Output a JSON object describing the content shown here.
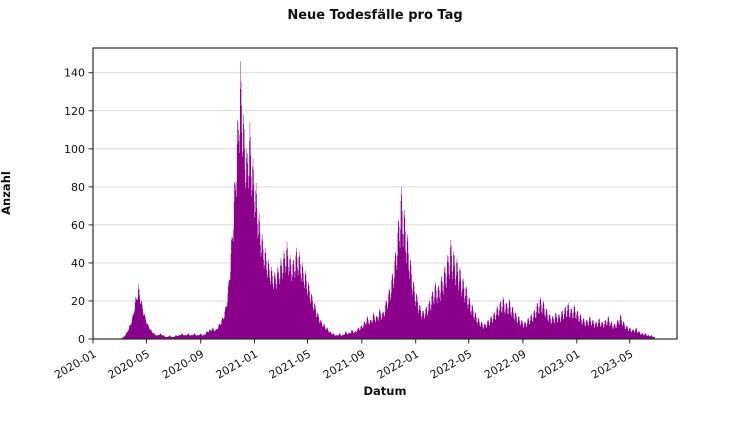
{
  "chart_data": {
    "type": "bar",
    "title": "Neue Todesfälle pro Tag",
    "xlabel": "Datum",
    "ylabel": "Anzahl",
    "x_ticks": [
      "2020-01",
      "2020-05",
      "2020-09",
      "2021-01",
      "2021-05",
      "2021-09",
      "2022-01",
      "2022-05",
      "2022-09",
      "2023-01",
      "2023-05"
    ],
    "y_ticks": [
      0,
      20,
      40,
      60,
      80,
      100,
      120,
      140
    ],
    "ylim": [
      0,
      153
    ],
    "xlim": [
      "2020-01-01",
      "2023-08-16"
    ],
    "grid": "horizontal-only",
    "legend": "none",
    "series": {
      "start_date": "2020-03-02",
      "interval_days": 7,
      "unit": "deaths per day (weekly envelope values)",
      "values": [
        0,
        1,
        3,
        7,
        12,
        22,
        29,
        20,
        13,
        8,
        5,
        3,
        2,
        3,
        2,
        1,
        2,
        1,
        2,
        2,
        3,
        2,
        3,
        2,
        3,
        2,
        3,
        2,
        4,
        5,
        6,
        5,
        8,
        11,
        16,
        28,
        52,
        82,
        115,
        146,
        118,
        100,
        114,
        95,
        82,
        66,
        55,
        48,
        42,
        38,
        35,
        38,
        42,
        46,
        51,
        44,
        42,
        48,
        46,
        40,
        36,
        30,
        24,
        19,
        14,
        10,
        8,
        6,
        4,
        3,
        2,
        3,
        2,
        4,
        3,
        5,
        4,
        6,
        7,
        9,
        12,
        10,
        14,
        12,
        16,
        14,
        20,
        26,
        34,
        45,
        62,
        80,
        68,
        55,
        42,
        30,
        24,
        18,
        15,
        17,
        20,
        25,
        30,
        28,
        33,
        38,
        44,
        52,
        46,
        42,
        38,
        32,
        28,
        22,
        18,
        14,
        11,
        9,
        8,
        10,
        12,
        14,
        17,
        20,
        22,
        19,
        21,
        17,
        14,
        12,
        10,
        9,
        11,
        13,
        15,
        19,
        22,
        20,
        16,
        13,
        12,
        14,
        13,
        15,
        17,
        19,
        16,
        18,
        15,
        13,
        11,
        10,
        12,
        10,
        9,
        11,
        9,
        10,
        12,
        9,
        8,
        10,
        13,
        9,
        7,
        6,
        5,
        6,
        4,
        3,
        3,
        2,
        2,
        1
      ]
    },
    "colors": {
      "bar": "#8B008B",
      "grid": "#d9d9d9",
      "spine": "#2a2a2a",
      "text": "#111111",
      "background": "#ffffff"
    }
  }
}
